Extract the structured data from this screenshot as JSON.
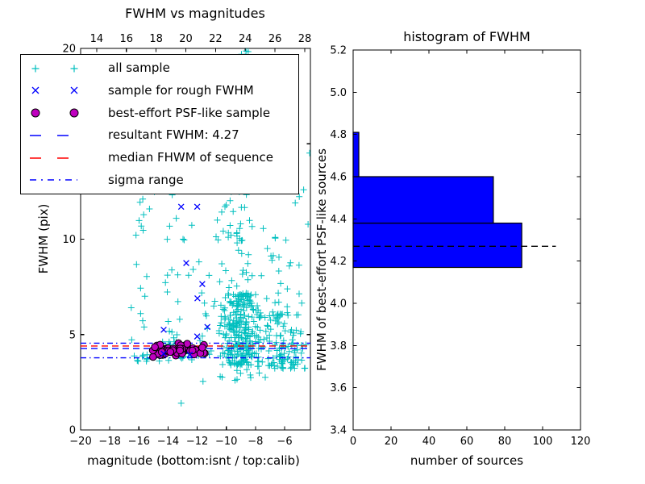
{
  "figure": {
    "background": "#ffffff"
  },
  "colors": {
    "all_sample": "#00bfbf",
    "rough_sample": "#0000ff",
    "psf_sample_fill": "#bf00bf",
    "psf_sample_edge": "#000000",
    "resultant_line": "#0000ff",
    "median_line": "#ff0000",
    "sigma_line": "#0000ff",
    "hist_bar_fill": "#0000ff",
    "hist_bar_edge": "#000000",
    "hist_marker_line": "#000000",
    "axis": "#000000"
  },
  "chart_data": [
    {
      "id": "fwhm-vs-magnitudes",
      "type": "scatter",
      "title": "FWHM vs magnitudes",
      "xlabel": "magnitude (bottom:isnt / top:calib)",
      "ylabel": "FWHM (pix)",
      "xlim": [
        -20,
        -4.23
      ],
      "ylim": [
        0,
        20
      ],
      "xticks": [
        -20,
        -18,
        -16,
        -14,
        -12,
        -10,
        -8,
        -6
      ],
      "yticks": [
        0,
        5,
        10,
        15,
        20
      ],
      "top_axis": {
        "lim": [
          12.92,
          28.38
        ],
        "ticks": [
          14,
          16,
          18,
          20,
          22,
          24,
          26,
          28
        ]
      },
      "grid": false,
      "seed": 42,
      "series": [
        {
          "name": "all sample",
          "marker": "+",
          "color": "#00bfbf",
          "clusters": [
            {
              "n": 26,
              "mag_center": -15.75,
              "mag_spread": 0.5,
              "fwhm_min": 3.6,
              "fwhm_max": 13.2,
              "power": 2.1
            },
            {
              "n": 40,
              "mag_center": -13.6,
              "mag_spread": 1.05,
              "fwhm_min": 3.6,
              "fwhm_max": 12.6,
              "power": 2.0
            },
            {
              "n": 28,
              "mag_center": -11.3,
              "mag_spread": 0.85,
              "fwhm_min": 3.9,
              "fwhm_max": 13.5,
              "power": 1.9
            },
            {
              "n": 85,
              "mag_center": -9.25,
              "mag_spread": 0.8,
              "fwhm_min": 6.5,
              "fwhm_max": 18.2,
              "power": 1.7
            },
            {
              "n": 255,
              "mag_center": -9.05,
              "mag_spread": 0.9,
              "fwhm_min": 3.4,
              "fwhm_max": 7.2,
              "power": 1.25
            },
            {
              "n": 115,
              "mag_center": -6.2,
              "mag_spread": 1.15,
              "fwhm_min": 3.2,
              "fwhm_max": 6.2,
              "power": 1.3
            },
            {
              "n": 28,
              "mag_center": -6.4,
              "mag_spread": 1.0,
              "fwhm_min": 6.0,
              "fwhm_max": 10.8,
              "power": 1.5
            },
            {
              "n": 7,
              "mag_center": -8.8,
              "mag_spread": 0.5,
              "fwhm_min": 19.2,
              "fwhm_max": 20.4,
              "power": 1.0
            },
            {
              "n": 5,
              "mag_center": -5.0,
              "mag_spread": 0.5,
              "fwhm_min": 10.2,
              "fwhm_max": 15.3,
              "power": 1.0
            },
            {
              "n": 12,
              "mag_center": -8.2,
              "mag_spread": 1.7,
              "fwhm_min": 2.55,
              "fwhm_max": 3.4,
              "power": 1.0
            }
          ],
          "extra_points": [
            [
              -13.1,
              1.4
            ],
            [
              -11.6,
              2.55
            ]
          ]
        },
        {
          "name": "sample for rough FWHM",
          "marker": "x",
          "color": "#0000ff",
          "points": [
            [
              -13.1,
              11.7
            ],
            [
              -12.0,
              11.7
            ],
            [
              -12.75,
              8.75
            ],
            [
              -11.65,
              7.65
            ],
            [
              -11.98,
              6.9
            ],
            [
              -14.3,
              5.25
            ],
            [
              -12.0,
              4.9
            ],
            [
              -11.3,
              5.4
            ],
            [
              -14.3,
              4.0
            ],
            [
              -12.5,
              3.95
            ]
          ]
        },
        {
          "name": "best-effort PSF-like sample",
          "marker": "o",
          "fill": "#bf00bf",
          "edge": "#000000",
          "cluster": {
            "n": 58,
            "mag_range": [
              -15.05,
              -11.4
            ],
            "fwhm_center": 4.17,
            "fwhm_spread": 0.26,
            "fwhm_clip": [
              3.73,
              4.6
            ]
          }
        }
      ],
      "hlines": [
        {
          "name": "sigma range upper",
          "y": 4.55,
          "style": "dashdot",
          "color": "#0000ff"
        },
        {
          "name": "median FHWM of sequence",
          "y": 4.4,
          "style": "dashed",
          "color": "#ff0000"
        },
        {
          "name": "resultant FWHM: 4.27",
          "y": 4.27,
          "style": "dashed",
          "color": "#0000ff"
        },
        {
          "name": "sigma range lower",
          "y": 3.78,
          "style": "dashdot",
          "color": "#0000ff"
        }
      ],
      "legend": {
        "position": "upper left",
        "items": [
          {
            "label": "all sample",
            "glyph": "plus-pair",
            "color": "#00bfbf"
          },
          {
            "label": "sample for rough FWHM",
            "glyph": "x-pair",
            "color": "#0000ff"
          },
          {
            "label": "best-effort PSF-like sample",
            "glyph": "circle-pair",
            "color": "#bf00bf"
          },
          {
            "label": "resultant FWHM: 4.27",
            "glyph": "dashed-line",
            "color": "#0000ff"
          },
          {
            "label": "median FHWM of sequence",
            "glyph": "dashed-line",
            "color": "#ff0000"
          },
          {
            "label": "sigma range",
            "glyph": "dashdot-line",
            "color": "#0000ff"
          }
        ]
      }
    },
    {
      "id": "histogram-of-fwhm",
      "type": "bar",
      "orientation": "horizontal",
      "title": "histogram of FWHM",
      "xlabel": "number of sources",
      "ylabel": "FWHM of best-effort PSF-like sources",
      "xlim": [
        0,
        120
      ],
      "ylim": [
        3.4,
        5.2
      ],
      "xticks": [
        0,
        20,
        40,
        60,
        80,
        100,
        120
      ],
      "yticks": [
        3.4,
        3.6,
        3.8,
        4.0,
        4.2,
        4.4,
        4.6,
        4.8,
        5.0,
        5.2
      ],
      "grid": false,
      "bins": [
        {
          "from": 4.17,
          "to": 4.38,
          "count": 89
        },
        {
          "from": 4.38,
          "to": 4.6,
          "count": 74
        },
        {
          "from": 4.6,
          "to": 4.81,
          "count": 3
        }
      ],
      "marker_line": {
        "y": 4.27,
        "style": "dashed",
        "color": "#000000",
        "x_extent": 107
      }
    }
  ]
}
